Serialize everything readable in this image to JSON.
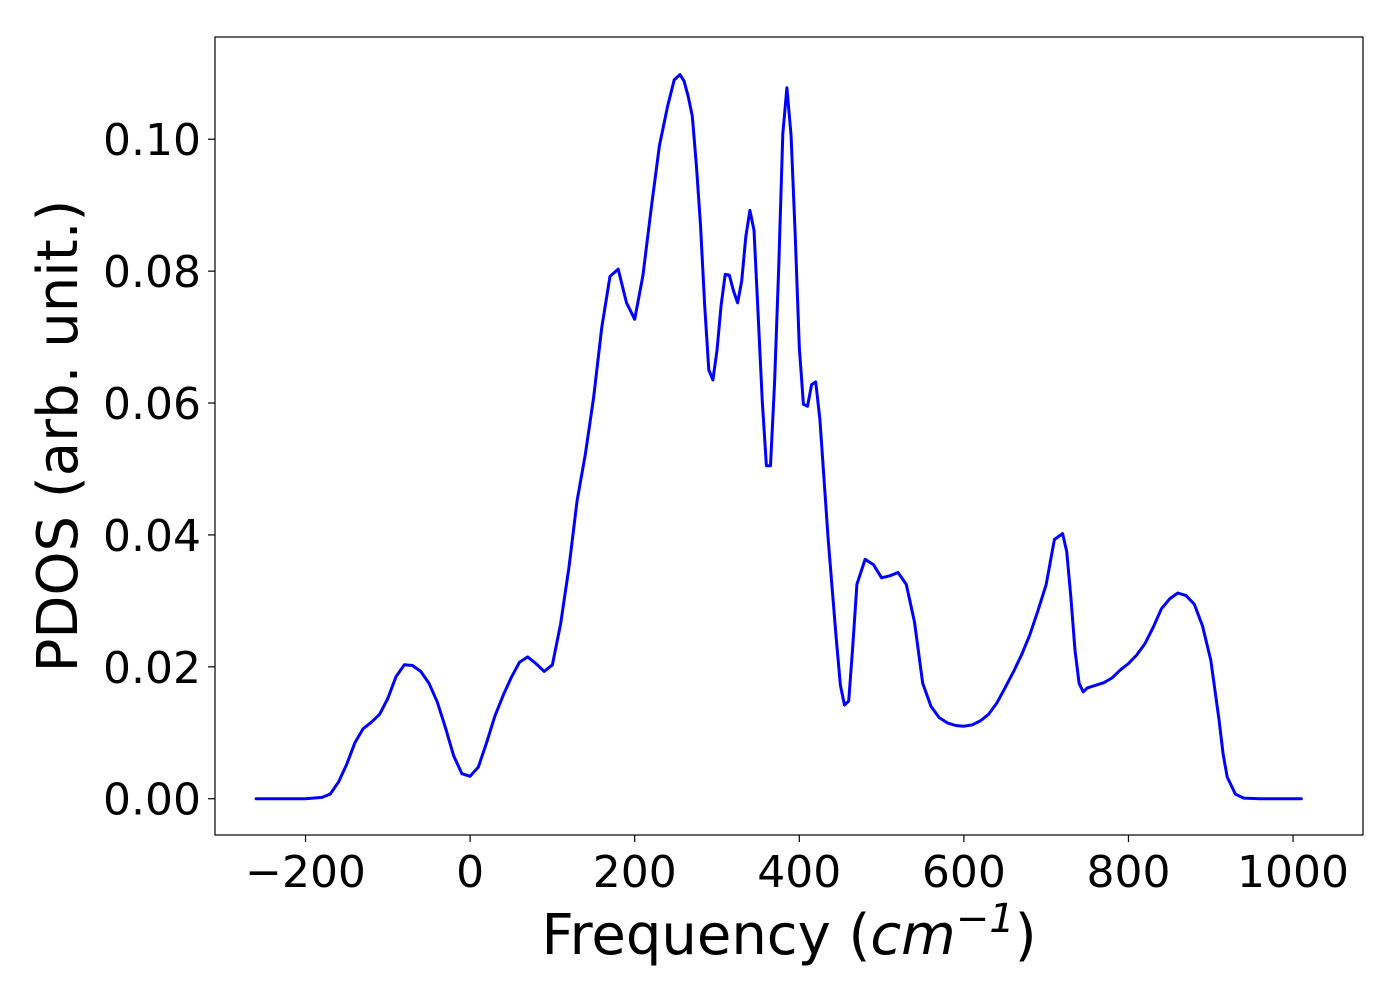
{
  "chart_data": {
    "type": "line",
    "xlabel": {
      "text": "Frequency (",
      "math_base": "cm",
      "math_exp": "−1",
      "close": ")"
    },
    "ylabel": "PDOS (arb. unit.)",
    "xlim": [
      -310,
      1085
    ],
    "ylim": [
      -0.0055,
      0.1155
    ],
    "xticks": [
      {
        "value": -200,
        "label": "−200"
      },
      {
        "value": 0,
        "label": "0"
      },
      {
        "value": 200,
        "label": "200"
      },
      {
        "value": 400,
        "label": "400"
      },
      {
        "value": 600,
        "label": "600"
      },
      {
        "value": 800,
        "label": "800"
      },
      {
        "value": 1000,
        "label": "1000"
      }
    ],
    "yticks": [
      {
        "value": 0.0,
        "label": "0.00"
      },
      {
        "value": 0.02,
        "label": "0.02"
      },
      {
        "value": 0.04,
        "label": "0.04"
      },
      {
        "value": 0.06,
        "label": "0.06"
      },
      {
        "value": 0.08,
        "label": "0.08"
      },
      {
        "value": 0.1,
        "label": "0.10"
      }
    ],
    "grid": false,
    "series": [
      {
        "color": "#0000ff",
        "x": [
          -260,
          -200,
          -180,
          -170,
          -160,
          -150,
          -140,
          -130,
          -120,
          -110,
          -100,
          -90,
          -80,
          -70,
          -60,
          -50,
          -40,
          -30,
          -20,
          -10,
          0,
          10,
          20,
          30,
          40,
          50,
          60,
          70,
          80,
          90,
          100,
          110,
          120,
          130,
          140,
          150,
          160,
          170,
          180,
          190,
          200,
          210,
          220,
          230,
          240,
          248,
          255,
          260,
          265,
          270,
          275,
          280,
          285,
          290,
          295,
          300,
          305,
          310,
          315,
          320,
          325,
          330,
          335,
          340,
          345,
          350,
          355,
          360,
          365,
          370,
          375,
          380,
          385,
          390,
          395,
          400,
          405,
          410,
          415,
          420,
          425,
          430,
          435,
          440,
          445,
          450,
          455,
          460,
          465,
          470,
          480,
          490,
          500,
          510,
          520,
          530,
          540,
          550,
          560,
          570,
          580,
          590,
          600,
          610,
          620,
          630,
          640,
          650,
          660,
          670,
          680,
          690,
          700,
          710,
          720,
          725,
          730,
          735,
          740,
          745,
          750,
          760,
          770,
          780,
          790,
          800,
          810,
          820,
          830,
          840,
          850,
          860,
          870,
          880,
          890,
          900,
          910,
          915,
          920,
          930,
          940,
          960,
          1000,
          1010
        ],
        "y": [
          0.0,
          0.0,
          0.0002,
          0.0007,
          0.0025,
          0.0052,
          0.0085,
          0.0106,
          0.0116,
          0.0128,
          0.0152,
          0.0185,
          0.0203,
          0.0202,
          0.0193,
          0.0175,
          0.0147,
          0.0108,
          0.0065,
          0.0038,
          0.0034,
          0.0048,
          0.0085,
          0.0125,
          0.0156,
          0.0184,
          0.0207,
          0.0215,
          0.0205,
          0.0193,
          0.0203,
          0.0265,
          0.035,
          0.0452,
          0.0522,
          0.0608,
          0.0715,
          0.0792,
          0.0803,
          0.0752,
          0.0727,
          0.0793,
          0.0895,
          0.099,
          0.105,
          0.109,
          0.1098,
          0.1088,
          0.1065,
          0.1035,
          0.096,
          0.087,
          0.075,
          0.065,
          0.0635,
          0.068,
          0.0748,
          0.0795,
          0.0794,
          0.077,
          0.0752,
          0.0785,
          0.0852,
          0.0892,
          0.0862,
          0.0735,
          0.0602,
          0.0505,
          0.0505,
          0.0632,
          0.0805,
          0.1008,
          0.1078,
          0.1005,
          0.0855,
          0.0685,
          0.0598,
          0.0595,
          0.0628,
          0.0632,
          0.0575,
          0.0485,
          0.0395,
          0.0318,
          0.0242,
          0.0172,
          0.0142,
          0.0148,
          0.0232,
          0.0325,
          0.0363,
          0.0355,
          0.0335,
          0.0338,
          0.0343,
          0.0325,
          0.0268,
          0.0175,
          0.014,
          0.0123,
          0.0115,
          0.0111,
          0.011,
          0.0112,
          0.0118,
          0.0128,
          0.0145,
          0.0168,
          0.0192,
          0.0218,
          0.0248,
          0.0285,
          0.0325,
          0.0393,
          0.0402,
          0.0375,
          0.0305,
          0.0225,
          0.0175,
          0.0162,
          0.0168,
          0.0172,
          0.0176,
          0.0183,
          0.0195,
          0.0205,
          0.0218,
          0.0235,
          0.026,
          0.0288,
          0.0303,
          0.0312,
          0.0308,
          0.0295,
          0.0262,
          0.021,
          0.012,
          0.0068,
          0.0033,
          0.0007,
          0.0001,
          0.0,
          0.0,
          0.0
        ]
      }
    ]
  }
}
